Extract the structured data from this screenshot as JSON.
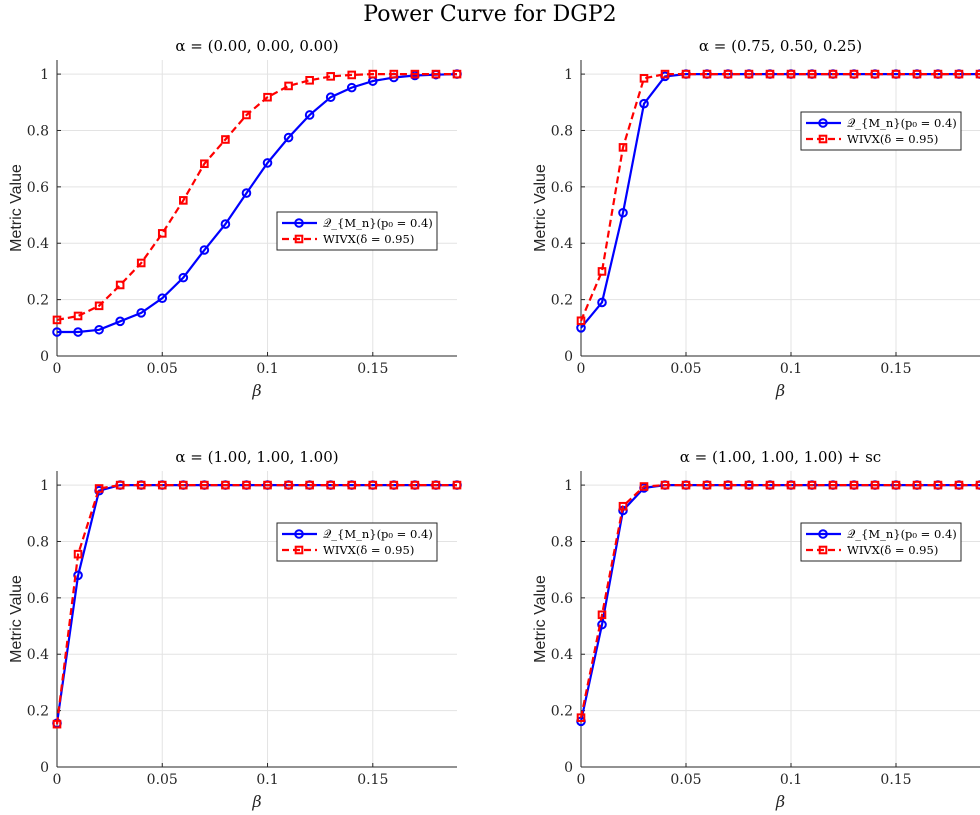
{
  "figure_title": "Power Curve for DGP2",
  "colors": {
    "q": "#0000ff",
    "wivx": "#ff0000",
    "grid": "#e3e3e3",
    "axis": "#262626"
  },
  "chart_data": [
    {
      "type": "line",
      "title": "α = (0.00, 0.00, 0.00)",
      "xlabel": "β",
      "ylabel": "Metric Value",
      "xlim": [
        0,
        0.19
      ],
      "ylim": [
        0,
        1.05
      ],
      "xticks": [
        0,
        0.05,
        0.1,
        0.15
      ],
      "xtick_labels": [
        "0",
        "0.05",
        "0.1",
        "0.15"
      ],
      "yticks": [
        0,
        0.2,
        0.4,
        0.6,
        0.8,
        1
      ],
      "ytick_labels": [
        "0",
        "0.2",
        "0.4",
        "0.6",
        "0.8",
        "1"
      ],
      "grid": true,
      "legend_position": "center-right",
      "x": [
        0,
        0.01,
        0.02,
        0.03,
        0.04,
        0.05,
        0.06,
        0.07,
        0.08,
        0.09,
        0.1,
        0.11,
        0.12,
        0.13,
        0.14,
        0.15,
        0.16,
        0.17,
        0.18,
        0.19
      ],
      "series": [
        {
          "name": "𝒬_{M_n}(p₀ = 0.4)",
          "marker": "circle",
          "dash": "solid",
          "color_key": "q",
          "values": [
            0.085,
            0.085,
            0.093,
            0.123,
            0.153,
            0.205,
            0.278,
            0.376,
            0.468,
            0.578,
            0.685,
            0.775,
            0.855,
            0.918,
            0.952,
            0.975,
            0.988,
            0.995,
            0.998,
            1.0
          ]
        },
        {
          "name": "WIVX(δ = 0.95)",
          "marker": "square",
          "dash": "dashed",
          "color_key": "wivx",
          "values": [
            0.128,
            0.142,
            0.178,
            0.252,
            0.33,
            0.435,
            0.552,
            0.682,
            0.768,
            0.855,
            0.918,
            0.958,
            0.978,
            0.992,
            0.997,
            1.0,
            1.0,
            1.0,
            1.0,
            1.0
          ]
        }
      ]
    },
    {
      "type": "line",
      "title": "α = (0.75, 0.50, 0.25)",
      "xlabel": "β",
      "ylabel": "Metric Value",
      "xlim": [
        0,
        0.19
      ],
      "ylim": [
        0,
        1.05
      ],
      "xticks": [
        0,
        0.05,
        0.1,
        0.15
      ],
      "xtick_labels": [
        "0",
        "0.05",
        "0.1",
        "0.15"
      ],
      "yticks": [
        0,
        0.2,
        0.4,
        0.6,
        0.8,
        1
      ],
      "ytick_labels": [
        "0",
        "0.2",
        "0.4",
        "0.6",
        "0.8",
        "1"
      ],
      "grid": true,
      "legend_position": "upper-right",
      "x": [
        0,
        0.01,
        0.02,
        0.03,
        0.04,
        0.05,
        0.06,
        0.07,
        0.08,
        0.09,
        0.1,
        0.11,
        0.12,
        0.13,
        0.14,
        0.15,
        0.16,
        0.17,
        0.18,
        0.19
      ],
      "series": [
        {
          "name": "𝒬_{M_n}(p₀ = 0.4)",
          "marker": "circle",
          "dash": "solid",
          "color_key": "q",
          "values": [
            0.1,
            0.19,
            0.508,
            0.895,
            0.992,
            1.0,
            1.0,
            1.0,
            1.0,
            1.0,
            1.0,
            1.0,
            1.0,
            1.0,
            1.0,
            1.0,
            1.0,
            1.0,
            1.0,
            1.0
          ]
        },
        {
          "name": "WIVX(δ = 0.95)",
          "marker": "square",
          "dash": "dashed",
          "color_key": "wivx",
          "values": [
            0.125,
            0.3,
            0.74,
            0.985,
            1.0,
            1.0,
            1.0,
            1.0,
            1.0,
            1.0,
            1.0,
            1.0,
            1.0,
            1.0,
            1.0,
            1.0,
            1.0,
            1.0,
            1.0,
            1.0
          ]
        }
      ]
    },
    {
      "type": "line",
      "title": "α = (1.00, 1.00, 1.00)",
      "xlabel": "β",
      "ylabel": "Metric Value",
      "xlim": [
        0,
        0.19
      ],
      "ylim": [
        0,
        1.05
      ],
      "xticks": [
        0,
        0.05,
        0.1,
        0.15
      ],
      "xtick_labels": [
        "0",
        "0.05",
        "0.1",
        "0.15"
      ],
      "yticks": [
        0,
        0.2,
        0.4,
        0.6,
        0.8,
        1
      ],
      "ytick_labels": [
        "0",
        "0.2",
        "0.4",
        "0.6",
        "0.8",
        "1"
      ],
      "grid": true,
      "legend_position": "upper-right",
      "x": [
        0,
        0.01,
        0.02,
        0.03,
        0.04,
        0.05,
        0.06,
        0.07,
        0.08,
        0.09,
        0.1,
        0.11,
        0.12,
        0.13,
        0.14,
        0.15,
        0.16,
        0.17,
        0.18,
        0.19
      ],
      "series": [
        {
          "name": "𝒬_{M_n}(p₀ = 0.4)",
          "marker": "circle",
          "dash": "solid",
          "color_key": "q",
          "values": [
            0.155,
            0.68,
            0.98,
            1.0,
            1.0,
            1.0,
            1.0,
            1.0,
            1.0,
            1.0,
            1.0,
            1.0,
            1.0,
            1.0,
            1.0,
            1.0,
            1.0,
            1.0,
            1.0,
            1.0
          ]
        },
        {
          "name": "WIVX(δ = 0.95)",
          "marker": "square",
          "dash": "dashed",
          "color_key": "wivx",
          "values": [
            0.152,
            0.755,
            0.988,
            1.0,
            1.0,
            1.0,
            1.0,
            1.0,
            1.0,
            1.0,
            1.0,
            1.0,
            1.0,
            1.0,
            1.0,
            1.0,
            1.0,
            1.0,
            1.0,
            1.0
          ]
        }
      ]
    },
    {
      "type": "line",
      "title": "α = (1.00, 1.00, 1.00) + sc",
      "xlabel": "β",
      "ylabel": "Metric Value",
      "xlim": [
        0,
        0.19
      ],
      "ylim": [
        0,
        1.05
      ],
      "xticks": [
        0,
        0.05,
        0.1,
        0.15
      ],
      "xtick_labels": [
        "0",
        "0.05",
        "0.1",
        "0.15"
      ],
      "yticks": [
        0,
        0.2,
        0.4,
        0.6,
        0.8,
        1
      ],
      "ytick_labels": [
        "0",
        "0.2",
        "0.4",
        "0.6",
        "0.8",
        "1"
      ],
      "grid": true,
      "legend_position": "upper-right",
      "x": [
        0,
        0.01,
        0.02,
        0.03,
        0.04,
        0.05,
        0.06,
        0.07,
        0.08,
        0.09,
        0.1,
        0.11,
        0.12,
        0.13,
        0.14,
        0.15,
        0.16,
        0.17,
        0.18,
        0.19
      ],
      "series": [
        {
          "name": "𝒬_{M_n}(p₀ = 0.4)",
          "marker": "circle",
          "dash": "solid",
          "color_key": "q",
          "values": [
            0.162,
            0.505,
            0.91,
            0.99,
            1.0,
            1.0,
            1.0,
            1.0,
            1.0,
            1.0,
            1.0,
            1.0,
            1.0,
            1.0,
            1.0,
            1.0,
            1.0,
            1.0,
            1.0,
            1.0
          ]
        },
        {
          "name": "WIVX(δ = 0.95)",
          "marker": "square",
          "dash": "dashed",
          "color_key": "wivx",
          "values": [
            0.175,
            0.54,
            0.925,
            0.995,
            1.0,
            1.0,
            1.0,
            1.0,
            1.0,
            1.0,
            1.0,
            1.0,
            1.0,
            1.0,
            1.0,
            1.0,
            1.0,
            1.0,
            1.0,
            1.0
          ]
        }
      ]
    }
  ]
}
